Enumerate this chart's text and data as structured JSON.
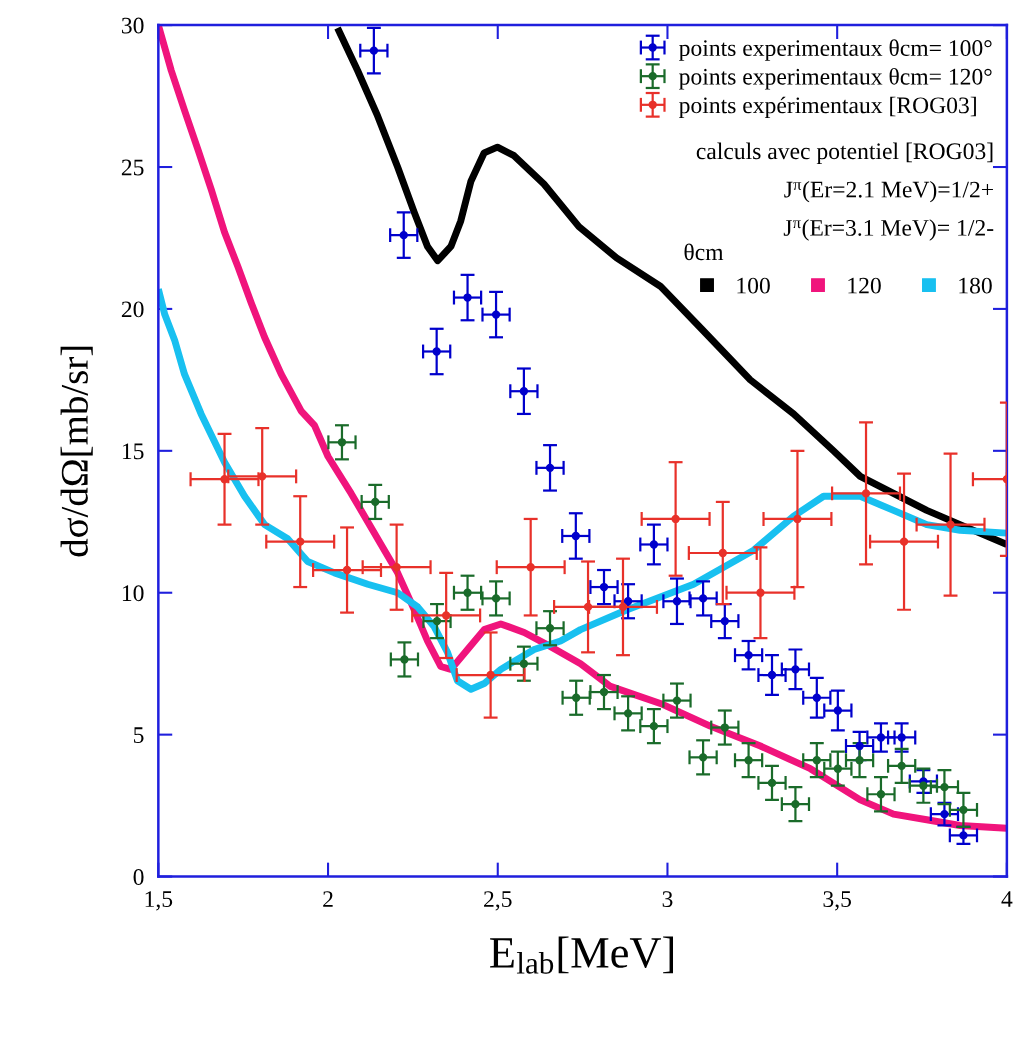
{
  "chart_data": {
    "type": "scatter",
    "xlabel": "E$_{lab}$[MeV]",
    "ylabel": "dσ/dΩ[mb/sr]",
    "xlim": [
      1.5,
      4
    ],
    "ylim": [
      0,
      30
    ],
    "xticks": [
      {
        "value": 1.5,
        "label": "1,5"
      },
      2,
      {
        "value": 2.5,
        "label": "2,5"
      },
      3,
      {
        "value": 3.5,
        "label": "3,5"
      },
      4
    ],
    "yticks": [
      0,
      5,
      10,
      15,
      20,
      25,
      30
    ],
    "grid": false,
    "legend": "top right",
    "legend_title": "θcm",
    "annotations": [
      "calculs avec potentiel [ROG03]",
      "J$^{π}$(Er=2.1 MeV)=1/2+",
      "J$^{π}$(Er=3.1 MeV)= 1/2-"
    ],
    "series": [
      {
        "name": "points experimentaux θcm= 100°",
        "color": "#0000cc",
        "marker": "circle",
        "x": [
          2.135,
          2.223,
          2.32,
          2.411,
          2.495,
          2.577,
          2.654,
          2.73,
          2.813,
          2.884,
          2.96,
          3.028,
          3.105,
          3.169,
          3.239,
          3.308,
          3.377,
          3.44,
          3.502,
          3.566,
          3.629,
          3.69,
          3.754,
          3.816,
          3.872
        ],
        "values": [
          29.1,
          22.6,
          18.5,
          20.4,
          19.8,
          17.1,
          14.4,
          12.0,
          10.2,
          9.7,
          11.7,
          9.7,
          9.8,
          9.0,
          7.8,
          7.1,
          7.3,
          6.3,
          5.85,
          4.6,
          4.9,
          4.9,
          3.35,
          2.2,
          1.45
        ],
        "errors": [
          0.8,
          0.8,
          0.8,
          0.8,
          0.8,
          0.8,
          0.8,
          0.8,
          0.6,
          0.6,
          0.7,
          0.8,
          0.6,
          0.6,
          0.5,
          0.7,
          0.7,
          0.7,
          0.7,
          0.5,
          0.5,
          0.5,
          0.4,
          0.4,
          0.3
        ],
        "xerrors": [
          0.04,
          0.04,
          0.04,
          0.04,
          0.04,
          0.04,
          0.04,
          0.04,
          0.04,
          0.04,
          0.04,
          0.04,
          0.04,
          0.04,
          0.04,
          0.04,
          0.04,
          0.04,
          0.04,
          0.04,
          0.04,
          0.04,
          0.04,
          0.04,
          0.04
        ]
      },
      {
        "name": "points experimentaux θcm= 120°",
        "color": "#1a6b2a",
        "marker": "circle",
        "x": [
          2.041,
          2.139,
          2.225,
          2.321,
          2.411,
          2.495,
          2.577,
          2.654,
          2.731,
          2.813,
          2.884,
          2.96,
          3.028,
          3.105,
          3.169,
          3.239,
          3.308,
          3.377,
          3.44,
          3.502,
          3.566,
          3.629,
          3.69,
          3.754,
          3.816,
          3.872
        ],
        "values": [
          15.3,
          13.2,
          7.65,
          9.0,
          10.0,
          9.8,
          7.5,
          8.75,
          6.3,
          6.5,
          5.75,
          5.3,
          6.2,
          4.2,
          5.25,
          4.1,
          3.3,
          2.55,
          4.1,
          3.8,
          4.1,
          2.9,
          3.9,
          3.2,
          3.15,
          2.35
        ],
        "errors": [
          0.6,
          0.6,
          0.6,
          0.6,
          0.6,
          0.6,
          0.6,
          0.6,
          0.6,
          0.6,
          0.6,
          0.6,
          0.6,
          0.6,
          0.6,
          0.6,
          0.6,
          0.6,
          0.6,
          0.6,
          0.6,
          0.6,
          0.6,
          0.6,
          0.6,
          0.6
        ],
        "xerrors": [
          0.04,
          0.04,
          0.04,
          0.04,
          0.04,
          0.04,
          0.04,
          0.04,
          0.04,
          0.04,
          0.04,
          0.04,
          0.04,
          0.04,
          0.04,
          0.04,
          0.04,
          0.04,
          0.04,
          0.04,
          0.04,
          0.04,
          0.04,
          0.04,
          0.04,
          0.04
        ]
      },
      {
        "name": "points expérimentaux [ROG03]",
        "color": "#e8312a",
        "marker": "circle",
        "x": [
          1.695,
          1.806,
          1.918,
          2.056,
          2.202,
          2.348,
          2.479,
          2.597,
          2.766,
          2.869,
          3.024,
          3.163,
          3.274,
          3.383,
          3.585,
          3.697,
          3.834,
          4.0
        ],
        "values": [
          14.0,
          14.1,
          11.8,
          10.8,
          10.9,
          9.2,
          7.1,
          10.9,
          9.5,
          9.5,
          12.6,
          11.4,
          10.0,
          12.6,
          13.5,
          11.8,
          12.4,
          14.0
        ],
        "errors": [
          1.6,
          1.7,
          1.6,
          1.5,
          1.5,
          1.5,
          1.5,
          1.7,
          1.6,
          1.7,
          2.0,
          1.8,
          1.6,
          2.4,
          2.5,
          2.4,
          2.5,
          2.7
        ],
        "xerrors": [
          0.1,
          0.1,
          0.1,
          0.1,
          0.1,
          0.1,
          0.1,
          0.1,
          0.1,
          0.1,
          0.1,
          0.1,
          0.1,
          0.1,
          0.1,
          0.1,
          0.1,
          [
            3.9,
            4.0
          ]
        ]
      },
      {
        "name": "100",
        "type": "line",
        "color": "#000000",
        "x": [
          2.028,
          2.087,
          2.146,
          2.205,
          2.254,
          2.293,
          2.323,
          2.362,
          2.391,
          2.421,
          2.46,
          2.499,
          2.548,
          2.636,
          2.739,
          2.85,
          2.979,
          3.1,
          3.244,
          3.372,
          3.489,
          3.568,
          3.666,
          3.764,
          3.862,
          4.0
        ],
        "values": [
          29.9,
          28.4,
          26.8,
          25.0,
          23.4,
          22.2,
          21.7,
          22.2,
          23.1,
          24.5,
          25.5,
          25.7,
          25.4,
          24.4,
          22.9,
          21.8,
          20.8,
          19.3,
          17.5,
          16.3,
          15.0,
          14.1,
          13.5,
          12.9,
          12.4,
          11.7
        ]
      },
      {
        "name": "120",
        "type": "line",
        "color": "#f0147c",
        "x": [
          1.5,
          1.538,
          1.577,
          1.617,
          1.656,
          1.695,
          1.734,
          1.774,
          1.813,
          1.862,
          1.921,
          1.96,
          2.0,
          2.068,
          2.166,
          2.205,
          2.254,
          2.293,
          2.332,
          2.362,
          2.411,
          2.46,
          2.509,
          2.578,
          2.656,
          2.744,
          2.832,
          2.979,
          3.126,
          3.274,
          3.421,
          3.568,
          3.666,
          3.764,
          3.862,
          4.0
        ],
        "values": [
          30.0,
          28.4,
          27.0,
          25.6,
          24.2,
          22.7,
          21.5,
          20.2,
          19.0,
          17.7,
          16.4,
          15.9,
          14.8,
          13.5,
          11.5,
          10.7,
          9.4,
          8.3,
          7.4,
          7.3,
          8.0,
          8.7,
          8.9,
          8.6,
          8.1,
          7.5,
          6.7,
          6.1,
          5.3,
          4.6,
          3.8,
          2.7,
          2.2,
          2.0,
          1.8,
          1.7
        ]
      },
      {
        "name": "180",
        "type": "line",
        "color": "#18c0f0",
        "x": [
          1.5,
          1.519,
          1.548,
          1.577,
          1.626,
          1.695,
          1.754,
          1.813,
          1.881,
          1.94,
          2.019,
          2.117,
          2.205,
          2.264,
          2.313,
          2.352,
          2.381,
          2.421,
          2.46,
          2.509,
          2.607,
          2.685,
          2.744,
          2.881,
          3.077,
          3.254,
          3.372,
          3.46,
          3.568,
          3.666,
          3.764,
          3.862,
          4.0
        ],
        "values": [
          20.7,
          19.8,
          18.9,
          17.7,
          16.3,
          14.6,
          13.4,
          12.4,
          11.9,
          11.1,
          10.7,
          10.3,
          10.0,
          9.5,
          8.8,
          7.9,
          6.9,
          6.6,
          6.8,
          7.3,
          8.0,
          8.3,
          8.7,
          9.4,
          10.3,
          11.5,
          12.7,
          13.4,
          13.4,
          12.9,
          12.4,
          12.2,
          12.1
        ]
      }
    ]
  }
}
